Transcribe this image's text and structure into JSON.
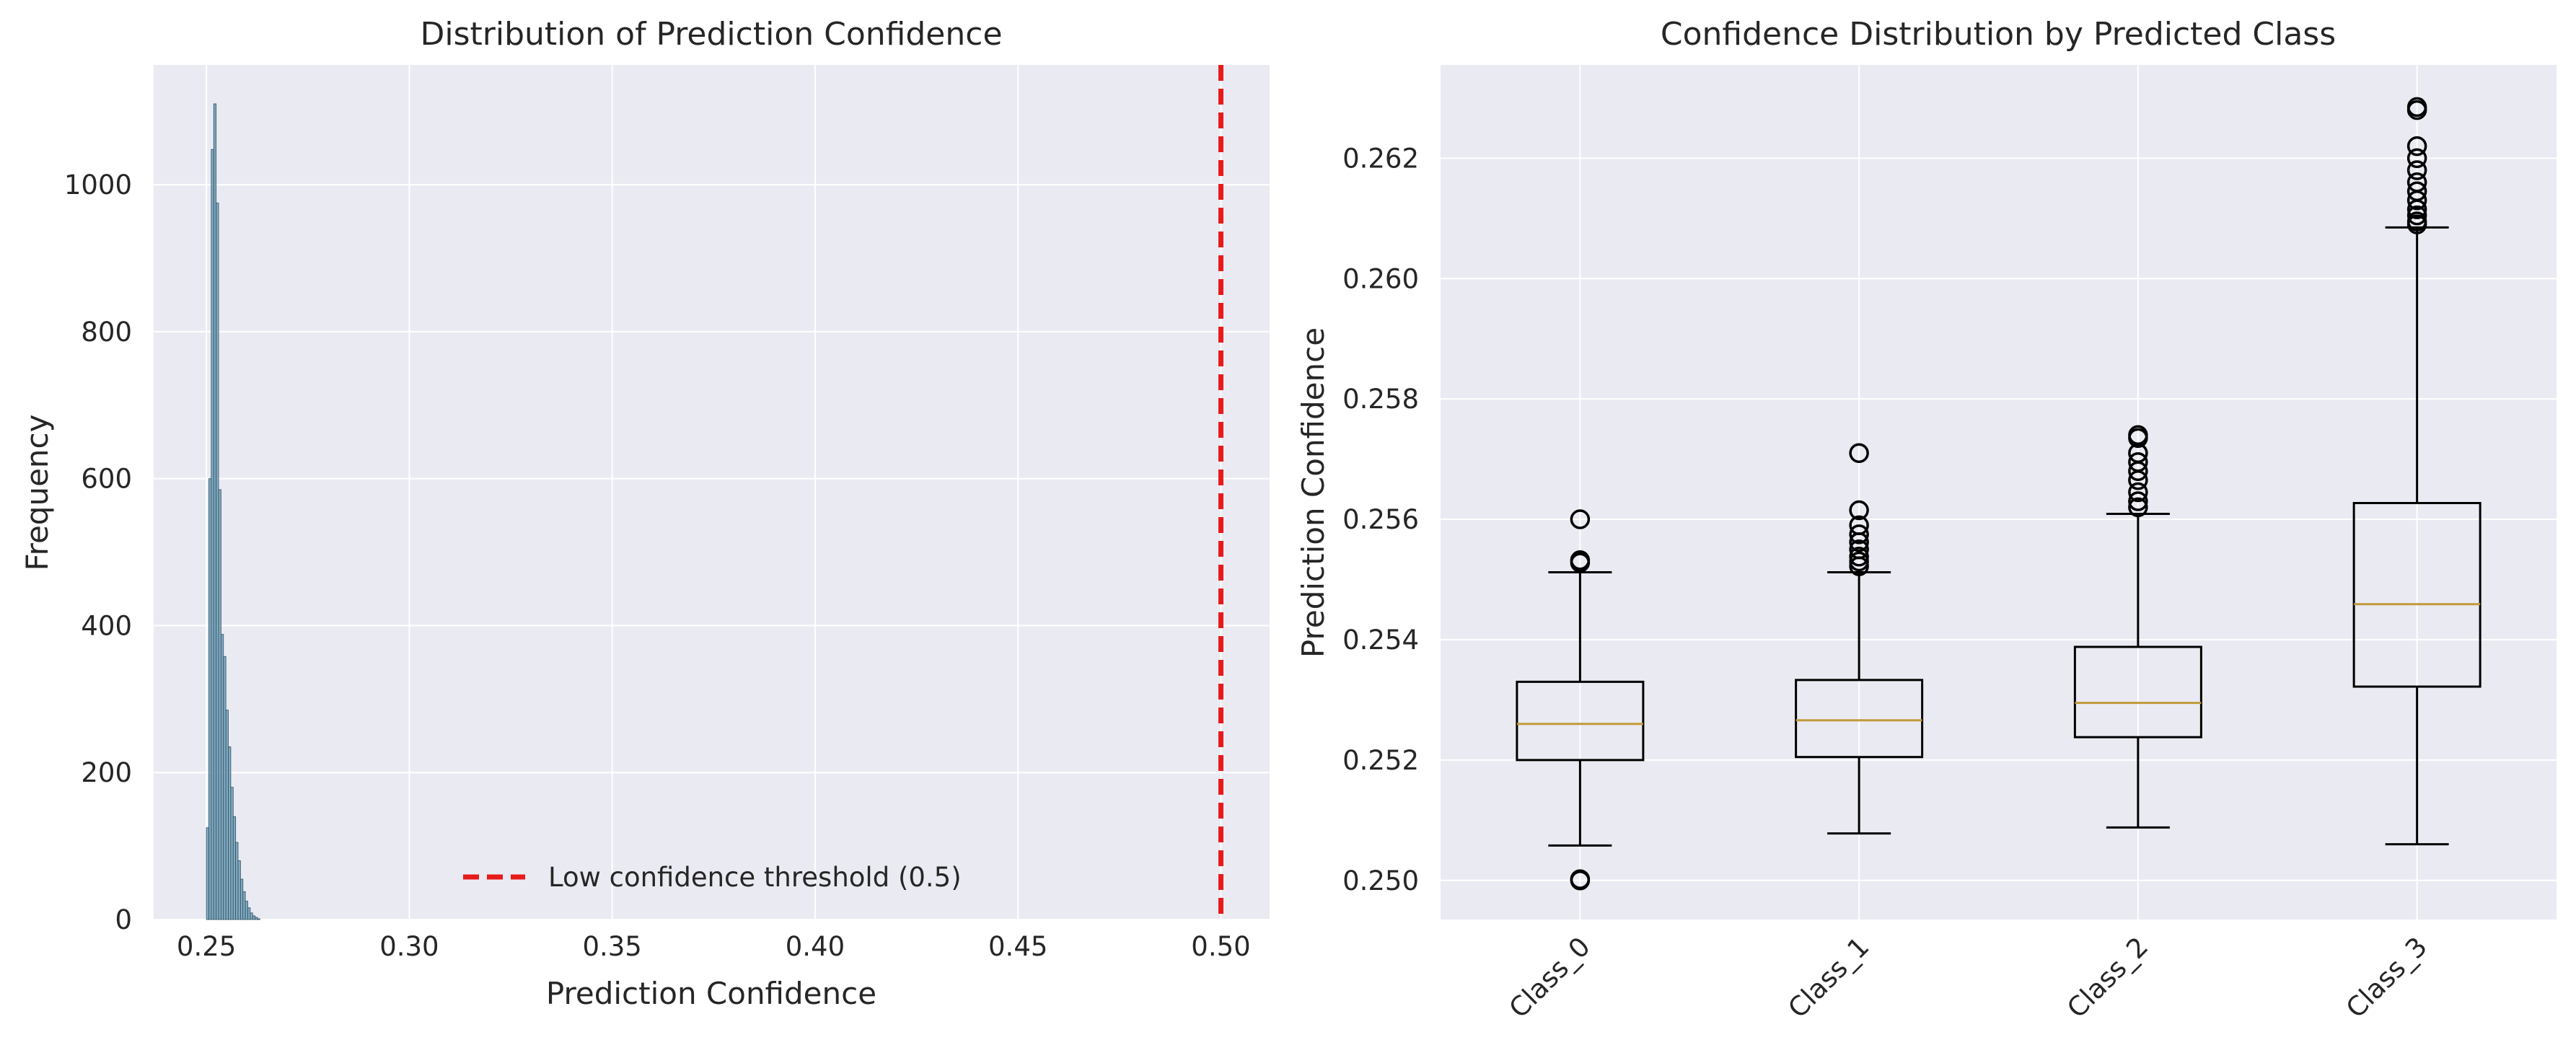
{
  "chart_data": [
    {
      "type": "histogram",
      "title": "Distribution of Prediction Confidence",
      "xlabel": "Prediction Confidence",
      "ylabel": "Frequency",
      "xlim": [
        0.237,
        0.512
      ],
      "ylim": [
        0,
        1163
      ],
      "xticks": [
        0.25,
        0.3,
        0.35,
        0.4,
        0.45,
        0.5
      ],
      "xtick_labels": [
        "0.25",
        "0.30",
        "0.35",
        "0.40",
        "0.45",
        "0.50"
      ],
      "yticks": [
        0,
        200,
        400,
        600,
        800,
        1000
      ],
      "ytick_labels": [
        "0",
        "200",
        "400",
        "600",
        "800",
        "1000"
      ],
      "bins": [
        {
          "x0": 0.25,
          "x1": 0.2506,
          "count": 125
        },
        {
          "x0": 0.2506,
          "x1": 0.2512,
          "count": 600
        },
        {
          "x0": 0.2512,
          "x1": 0.2518,
          "count": 1048
        },
        {
          "x0": 0.2518,
          "x1": 0.2524,
          "count": 1110
        },
        {
          "x0": 0.2524,
          "x1": 0.253,
          "count": 975
        },
        {
          "x0": 0.253,
          "x1": 0.2536,
          "count": 585
        },
        {
          "x0": 0.2536,
          "x1": 0.2542,
          "count": 388
        },
        {
          "x0": 0.2542,
          "x1": 0.2548,
          "count": 358
        },
        {
          "x0": 0.2548,
          "x1": 0.2554,
          "count": 285
        },
        {
          "x0": 0.2554,
          "x1": 0.256,
          "count": 235
        },
        {
          "x0": 0.256,
          "x1": 0.2566,
          "count": 180
        },
        {
          "x0": 0.2566,
          "x1": 0.2572,
          "count": 140
        },
        {
          "x0": 0.2572,
          "x1": 0.2578,
          "count": 105
        },
        {
          "x0": 0.2578,
          "x1": 0.2584,
          "count": 80
        },
        {
          "x0": 0.2584,
          "x1": 0.259,
          "count": 55
        },
        {
          "x0": 0.259,
          "x1": 0.2596,
          "count": 38
        },
        {
          "x0": 0.2596,
          "x1": 0.2602,
          "count": 25
        },
        {
          "x0": 0.2602,
          "x1": 0.2608,
          "count": 16
        },
        {
          "x0": 0.2608,
          "x1": 0.2614,
          "count": 9
        },
        {
          "x0": 0.2614,
          "x1": 0.262,
          "count": 5
        },
        {
          "x0": 0.262,
          "x1": 0.2626,
          "count": 3
        },
        {
          "x0": 0.2626,
          "x1": 0.2632,
          "count": 1
        }
      ],
      "bar_color": "#6f9fb8",
      "threshold": {
        "value": 0.5,
        "label": "Low confidence threshold (0.5)",
        "color": "#e81b1b"
      },
      "legend_position": "lower center",
      "grid": true
    },
    {
      "type": "boxplot",
      "title": "Confidence Distribution by Predicted Class",
      "xlabel": "",
      "ylabel": "Prediction Confidence",
      "ylim": [
        0.24935,
        0.26355
      ],
      "yticks": [
        0.25,
        0.252,
        0.254,
        0.256,
        0.258,
        0.26,
        0.262
      ],
      "ytick_labels": [
        "0.250",
        "0.252",
        "0.254",
        "0.256",
        "0.258",
        "0.260",
        "0.262"
      ],
      "categories": [
        "Class_0",
        "Class_1",
        "Class_2",
        "Class_3"
      ],
      "boxes": [
        {
          "whisker_low": 0.25058,
          "q1": 0.252,
          "median": 0.2526,
          "q3": 0.2533,
          "whisker_high": 0.25512,
          "outliers": [
            0.25,
            0.25002,
            0.25528,
            0.25532,
            0.256
          ]
        },
        {
          "whisker_low": 0.25078,
          "q1": 0.25205,
          "median": 0.25266,
          "q3": 0.25333,
          "whisker_high": 0.25512,
          "outliers": [
            0.25522,
            0.2553,
            0.25538,
            0.2555,
            0.25562,
            0.25575,
            0.2559,
            0.25615,
            0.2571
          ]
        },
        {
          "whisker_low": 0.25088,
          "q1": 0.25238,
          "median": 0.25295,
          "q3": 0.25388,
          "whisker_high": 0.25609,
          "outliers": [
            0.2562,
            0.2563,
            0.25645,
            0.25665,
            0.2568,
            0.25695,
            0.2571,
            0.25735,
            0.2574
          ]
        },
        {
          "whisker_low": 0.2506,
          "q1": 0.25322,
          "median": 0.25459,
          "q3": 0.25627,
          "whisker_high": 0.26085,
          "outliers": [
            0.2609,
            0.26095,
            0.26105,
            0.26115,
            0.2613,
            0.26145,
            0.2616,
            0.2618,
            0.262,
            0.2622,
            0.2628,
            0.26285
          ]
        }
      ],
      "median_color": "#c19a3a",
      "grid": true
    }
  ]
}
